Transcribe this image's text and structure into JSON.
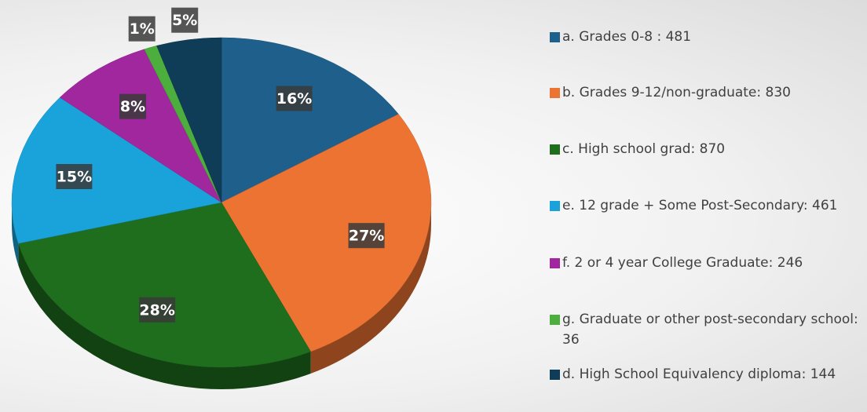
{
  "chart_data": {
    "type": "pie",
    "categories": [
      "a. Grades 0-8 : 481",
      "b. Grades 9-12/non-graduate: 830",
      "c. High school grad: 870",
      "e. 12 grade + Some Post-Secondary: 461",
      "f. 2 or 4 year College Graduate: 246",
      "g. Graduate or other post-secondary school: 36",
      "d. High School Equivalency diploma: 144"
    ],
    "values": [
      16,
      27,
      28,
      15,
      8,
      1,
      5
    ],
    "value_labels": [
      "16%",
      "27%",
      "28%",
      "15%",
      "8%",
      "1%",
      "5%"
    ],
    "colors": [
      "#1f5f8b",
      "#ed7332",
      "#1e6e1e",
      "#1aa3db",
      "#a0279e",
      "#4cae3c",
      "#0f3c56"
    ],
    "legend": "right"
  }
}
